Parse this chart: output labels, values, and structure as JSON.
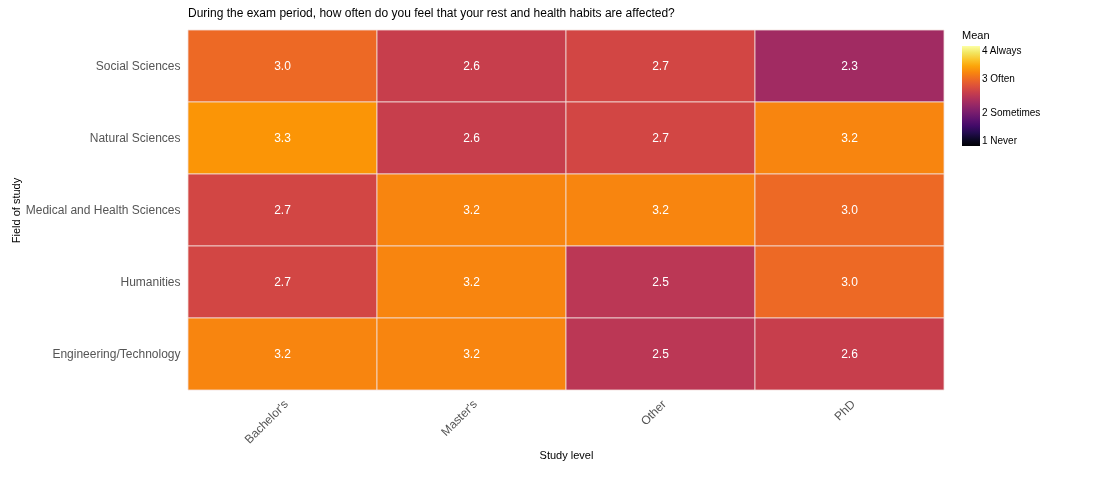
{
  "chart_data": {
    "type": "heatmap",
    "title": "During the exam period, how often do you feel that your rest and health habits are affected?",
    "xlabel": "Study level",
    "ylabel": "Field of study",
    "legend_title": "Mean",
    "categories": [
      "Bachelor's",
      "Master's",
      "Other",
      "PhD"
    ],
    "y_categories": [
      "Social Sciences",
      "Natural Sciences",
      "Medical and Health Sciences",
      "Humanities",
      "Engineering/Technology"
    ],
    "cells": [
      [
        3.0,
        2.6,
        2.7,
        2.3
      ],
      [
        3.3,
        2.6,
        2.7,
        3.2
      ],
      [
        2.7,
        3.2,
        3.2,
        3.0
      ],
      [
        2.7,
        3.2,
        2.5,
        3.0
      ],
      [
        3.2,
        3.2,
        2.5,
        2.6
      ]
    ],
    "cell_labels": [
      [
        "3.0",
        "2.6",
        "2.7",
        "2.3"
      ],
      [
        "3.3",
        "2.6",
        "2.7",
        "3.2"
      ],
      [
        "2.7",
        "3.2",
        "3.2",
        "3.0"
      ],
      [
        "2.7",
        "3.2",
        "2.5",
        "3.0"
      ],
      [
        "3.2",
        "3.2",
        "2.5",
        "2.6"
      ]
    ],
    "clim": [
      1,
      4
    ],
    "cticks": [
      {
        "value": 1,
        "label": "1     Never"
      },
      {
        "value": 2,
        "label": "2     Sometimes"
      },
      {
        "value": 3,
        "label": "3     Often"
      },
      {
        "value": 4,
        "label": "4     Always"
      }
    ]
  }
}
